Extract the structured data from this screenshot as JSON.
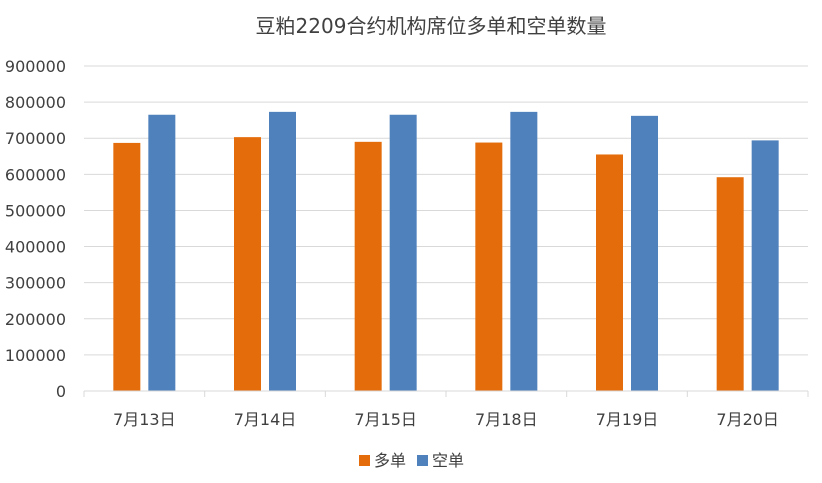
{
  "chart_data": {
    "type": "bar",
    "title": "豆粕2209合约机构席位多单和空单数量",
    "categories": [
      "7月13日",
      "7月14日",
      "7月15日",
      "7月18日",
      "7月19日",
      "7月20日"
    ],
    "series": [
      {
        "name": "多单",
        "color": "#E46C0A",
        "values": [
          687000,
          703000,
          690000,
          688000,
          655000,
          592000
        ]
      },
      {
        "name": "空单",
        "color": "#4F81BD",
        "values": [
          765000,
          773000,
          765000,
          773000,
          762000,
          694000
        ]
      }
    ],
    "ylim": [
      0,
      900000
    ],
    "yticks": [
      "0",
      "100000",
      "200000",
      "300000",
      "400000",
      "500000",
      "600000",
      "700000",
      "800000",
      "900000"
    ],
    "grid": true,
    "legend_position": "bottom"
  }
}
